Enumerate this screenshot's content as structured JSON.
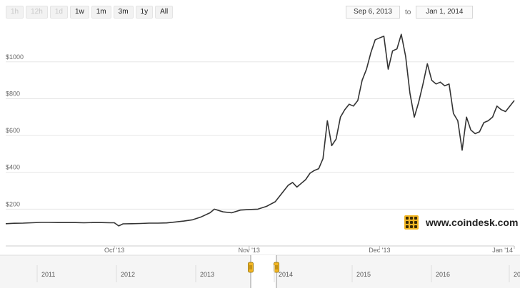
{
  "toolbar": {
    "buttons": [
      {
        "label": "1h",
        "enabled": false
      },
      {
        "label": "12h",
        "enabled": false
      },
      {
        "label": "1d",
        "enabled": false
      },
      {
        "label": "1w",
        "enabled": true
      },
      {
        "label": "1m",
        "enabled": true
      },
      {
        "label": "3m",
        "enabled": true
      },
      {
        "label": "1y",
        "enabled": true
      },
      {
        "label": "All",
        "enabled": true
      }
    ]
  },
  "range": {
    "from": "Sep 6, 2013",
    "to_label": "to",
    "to": "Jan 1, 2014"
  },
  "logo": {
    "text": "www.coindesk.com"
  },
  "colors": {
    "line": "#333333",
    "grid": "#e6e6e6",
    "navigator_fill": "#f5f5f5",
    "handle": "#f3b623"
  },
  "chart_data": {
    "type": "line",
    "title": "",
    "xlabel": "",
    "ylabel": "",
    "ylim": [
      0,
      1220
    ],
    "xlim": [
      "2013-09-06",
      "2014-01-01"
    ],
    "grid": true,
    "y_ticks": [
      "$200",
      "$400",
      "$600",
      "$800",
      "$1000"
    ],
    "y_tick_values": [
      200,
      400,
      600,
      800,
      1000
    ],
    "x_ticks": [
      {
        "date": "2013-10-01",
        "label": "Oct '13"
      },
      {
        "date": "2013-11-01",
        "label": "Nov '13"
      },
      {
        "date": "2013-12-01",
        "label": "Dec '13"
      },
      {
        "date": "2014-01-01",
        "label": "Jan '14"
      }
    ],
    "series": [
      {
        "points": [
          [
            "2013-09-06",
            121
          ],
          [
            "2013-09-08",
            123
          ],
          [
            "2013-09-10",
            124
          ],
          [
            "2013-09-12",
            126
          ],
          [
            "2013-09-14",
            128
          ],
          [
            "2013-09-16",
            128
          ],
          [
            "2013-09-18",
            127
          ],
          [
            "2013-09-20",
            127
          ],
          [
            "2013-09-22",
            127
          ],
          [
            "2013-09-24",
            126
          ],
          [
            "2013-09-26",
            127
          ],
          [
            "2013-09-28",
            127
          ],
          [
            "2013-09-30",
            126
          ],
          [
            "2013-10-01",
            126
          ],
          [
            "2013-10-02",
            109
          ],
          [
            "2013-10-03",
            120
          ],
          [
            "2013-10-05",
            121
          ],
          [
            "2013-10-07",
            122
          ],
          [
            "2013-10-09",
            124
          ],
          [
            "2013-10-11",
            124
          ],
          [
            "2013-10-13",
            125
          ],
          [
            "2013-10-15",
            130
          ],
          [
            "2013-10-17",
            135
          ],
          [
            "2013-10-19",
            142
          ],
          [
            "2013-10-21",
            158
          ],
          [
            "2013-10-23",
            180
          ],
          [
            "2013-10-24",
            200
          ],
          [
            "2013-10-26",
            185
          ],
          [
            "2013-10-28",
            180
          ],
          [
            "2013-10-30",
            195
          ],
          [
            "2013-11-01",
            198
          ],
          [
            "2013-11-03",
            200
          ],
          [
            "2013-11-05",
            215
          ],
          [
            "2013-11-07",
            240
          ],
          [
            "2013-11-09",
            300
          ],
          [
            "2013-11-10",
            330
          ],
          [
            "2013-11-11",
            345
          ],
          [
            "2013-11-12",
            320
          ],
          [
            "2013-11-13",
            340
          ],
          [
            "2013-11-14",
            360
          ],
          [
            "2013-11-15",
            395
          ],
          [
            "2013-11-16",
            410
          ],
          [
            "2013-11-17",
            420
          ],
          [
            "2013-11-18",
            475
          ],
          [
            "2013-11-19",
            680
          ],
          [
            "2013-11-20",
            545
          ],
          [
            "2013-11-21",
            580
          ],
          [
            "2013-11-22",
            700
          ],
          [
            "2013-11-23",
            740
          ],
          [
            "2013-11-24",
            770
          ],
          [
            "2013-11-25",
            760
          ],
          [
            "2013-11-26",
            790
          ],
          [
            "2013-11-27",
            900
          ],
          [
            "2013-11-28",
            960
          ],
          [
            "2013-11-29",
            1050
          ],
          [
            "2013-11-30",
            1120
          ],
          [
            "2013-12-01",
            1130
          ],
          [
            "2013-12-02",
            1140
          ],
          [
            "2013-12-03",
            960
          ],
          [
            "2013-12-04",
            1060
          ],
          [
            "2013-12-05",
            1070
          ],
          [
            "2013-12-06",
            1150
          ],
          [
            "2013-12-07",
            1030
          ],
          [
            "2013-12-08",
            830
          ],
          [
            "2013-12-09",
            700
          ],
          [
            "2013-12-10",
            780
          ],
          [
            "2013-12-11",
            880
          ],
          [
            "2013-12-12",
            990
          ],
          [
            "2013-12-13",
            900
          ],
          [
            "2013-12-14",
            880
          ],
          [
            "2013-12-15",
            890
          ],
          [
            "2013-12-16",
            870
          ],
          [
            "2013-12-17",
            880
          ],
          [
            "2013-12-18",
            720
          ],
          [
            "2013-12-19",
            680
          ],
          [
            "2013-12-20",
            520
          ],
          [
            "2013-12-21",
            700
          ],
          [
            "2013-12-22",
            630
          ],
          [
            "2013-12-23",
            610
          ],
          [
            "2013-12-24",
            620
          ],
          [
            "2013-12-25",
            670
          ],
          [
            "2013-12-26",
            680
          ],
          [
            "2013-12-27",
            700
          ],
          [
            "2013-12-28",
            760
          ],
          [
            "2013-12-29",
            740
          ],
          [
            "2013-12-30",
            730
          ],
          [
            "2013-12-31",
            760
          ],
          [
            "2014-01-01",
            790
          ]
        ]
      }
    ],
    "navigator": {
      "labels": [
        "2011",
        "2012",
        "2013",
        "2014",
        "2015",
        "2016",
        "20"
      ]
    }
  }
}
